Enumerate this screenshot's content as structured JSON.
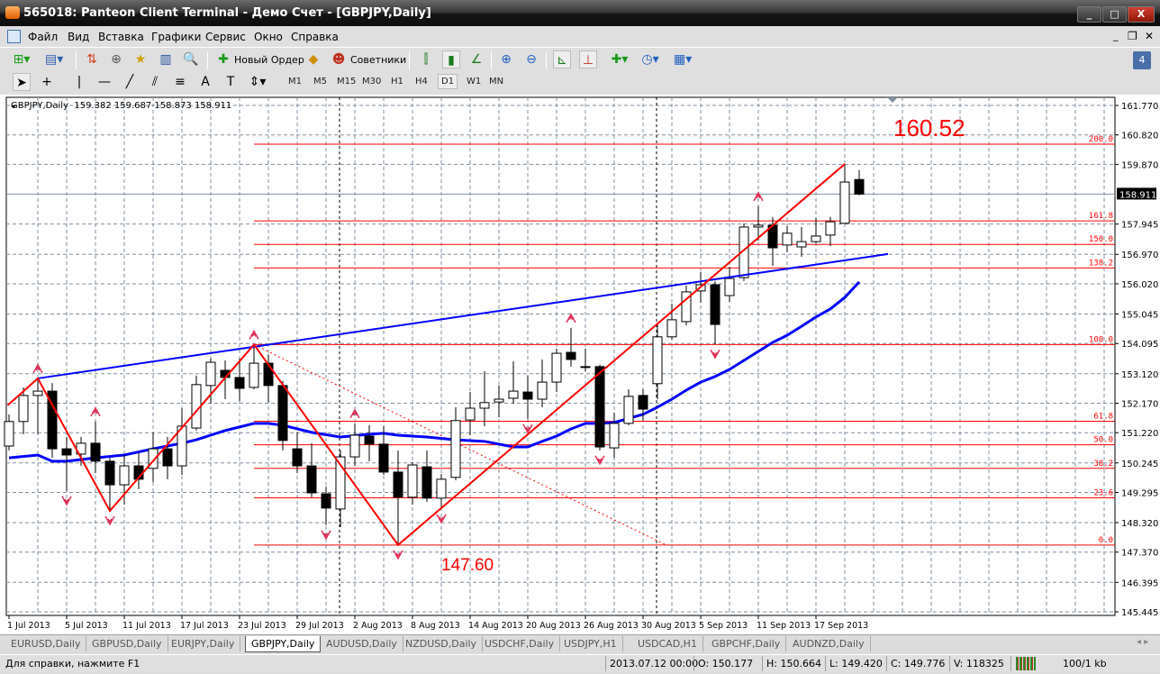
{
  "window": {
    "title": "565018: Panteon Client Terminal - Демо Счет - [GBPJPY,Daily]",
    "minimize": "_",
    "maximize": "□",
    "close": "X"
  },
  "mdi_controls": {
    "minimize": "_",
    "restore": "❐",
    "close": "✕"
  },
  "menu": [
    "Файл",
    "Вид",
    "Вставка",
    "Графики",
    "Сервис",
    "Окно",
    "Справка"
  ],
  "toolbar": {
    "new_order": "Новый Ордер",
    "experts": "Советники",
    "notifications_count": "4"
  },
  "timeframes": [
    "M1",
    "M5",
    "M15",
    "M30",
    "H1",
    "H4",
    "D1",
    "W1",
    "MN"
  ],
  "active_timeframe": "D1",
  "chart": {
    "header": "GBPJPY,Daily  159.382 159.687 158.873 158.911",
    "current_price": "158.911",
    "target_label": "160.52",
    "low_label": "147.60",
    "colors": {
      "bull_body": "#ffffff",
      "bear_body": "#000000",
      "ma": "#0000ff",
      "trendline": "#0000ff",
      "zigzag": "#ff0000",
      "fib": "#ff0000",
      "grid": "#8090a0"
    },
    "price_ticks": [
      "161.770",
      "160.820",
      "159.870",
      "157.945",
      "156.970",
      "156.020",
      "155.045",
      "154.095",
      "153.120",
      "152.170",
      "151.220",
      "150.245",
      "149.295",
      "148.320",
      "147.370",
      "146.395",
      "145.445"
    ],
    "date_labels": [
      "1 Jul 2013",
      "5 Jul 2013",
      "11 Jul 2013",
      "17 Jul 2013",
      "23 Jul 2013",
      "29 Jul 2013",
      "2 Aug 2013",
      "8 Aug 2013",
      "14 Aug 2013",
      "20 Aug 2013",
      "26 Aug 2013",
      "30 Aug 2013",
      "5 Sep 2013",
      "11 Sep 2013",
      "17 Sep 2013"
    ]
  },
  "chart_data": {
    "type": "candlestick",
    "symbol": "GBPJPY",
    "timeframe": "Daily",
    "ylim": [
      145.445,
      161.77
    ],
    "ohlc_columns": [
      "open",
      "high",
      "low",
      "close"
    ],
    "candles": [
      [
        150.79,
        151.81,
        150.65,
        151.58
      ],
      [
        151.58,
        152.68,
        151.17,
        152.42
      ],
      [
        152.42,
        152.97,
        151.17,
        152.56
      ],
      [
        152.56,
        152.82,
        150.41,
        150.7
      ],
      [
        150.7,
        151.08,
        149.34,
        150.5
      ],
      [
        150.53,
        151.08,
        150.15,
        150.88
      ],
      [
        150.88,
        151.58,
        149.92,
        150.3
      ],
      [
        150.3,
        150.41,
        148.7,
        149.54
      ],
      [
        149.54,
        150.5,
        148.9,
        150.15
      ],
      [
        150.15,
        150.56,
        149.4,
        149.72
      ],
      [
        150.07,
        151.23,
        149.63,
        150.7
      ],
      [
        150.7,
        151.08,
        149.72,
        150.15
      ],
      [
        150.15,
        152.01,
        149.86,
        151.43
      ],
      [
        151.37,
        153.06,
        151.29,
        152.77
      ],
      [
        152.74,
        153.61,
        152.16,
        153.49
      ],
      [
        153.23,
        153.55,
        152.3,
        153.0
      ],
      [
        153.0,
        153.61,
        152.24,
        152.65
      ],
      [
        152.68,
        154.06,
        152.62,
        153.46
      ],
      [
        153.46,
        153.75,
        152.19,
        152.74
      ],
      [
        152.74,
        152.88,
        150.65,
        150.97
      ],
      [
        150.7,
        151.23,
        149.92,
        150.15
      ],
      [
        150.15,
        150.88,
        149.14,
        149.28
      ],
      [
        149.25,
        149.48,
        148.24,
        148.79
      ],
      [
        148.76,
        150.65,
        148.18,
        150.44
      ],
      [
        150.44,
        151.52,
        150.15,
        151.14
      ],
      [
        151.11,
        151.46,
        150.3,
        150.85
      ],
      [
        150.85,
        151.43,
        149.86,
        149.95
      ],
      [
        149.95,
        150.65,
        147.6,
        149.14
      ],
      [
        149.14,
        150.27,
        148.9,
        150.18
      ],
      [
        150.12,
        150.65,
        148.99,
        149.11
      ],
      [
        149.11,
        149.89,
        148.76,
        149.72
      ],
      [
        149.78,
        152.04,
        149.69,
        151.61
      ],
      [
        151.63,
        152.53,
        151.14,
        152.01
      ],
      [
        152.01,
        153.2,
        151.43,
        152.19
      ],
      [
        152.21,
        152.74,
        151.72,
        152.3
      ],
      [
        152.33,
        153.52,
        152.16,
        152.56
      ],
      [
        152.53,
        153.06,
        151.66,
        152.3
      ],
      [
        152.3,
        153.58,
        152.04,
        152.85
      ],
      [
        152.85,
        153.93,
        152.53,
        153.78
      ],
      [
        153.81,
        154.6,
        153.35,
        153.58
      ],
      [
        153.35,
        153.93,
        153.2,
        153.35
      ],
      [
        153.35,
        153.41,
        150.65,
        150.76
      ],
      [
        150.73,
        151.87,
        150.41,
        151.52
      ],
      [
        151.52,
        152.62,
        151.46,
        152.39
      ],
      [
        152.42,
        152.62,
        151.61,
        151.98
      ],
      [
        152.8,
        154.77,
        152.3,
        154.31
      ],
      [
        154.31,
        155.38,
        154.22,
        154.86
      ],
      [
        154.8,
        155.96,
        154.68,
        155.76
      ],
      [
        155.79,
        156.4,
        155.41,
        155.99
      ],
      [
        155.99,
        156.11,
        154.07,
        154.71
      ],
      [
        155.64,
        156.57,
        155.44,
        156.19
      ],
      [
        156.22,
        157.97,
        156.11,
        157.85
      ],
      [
        157.85,
        158.52,
        157.41,
        157.91
      ],
      [
        157.91,
        158.17,
        156.6,
        157.18
      ],
      [
        157.27,
        157.88,
        157.04,
        157.65
      ],
      [
        157.21,
        157.85,
        156.89,
        157.38
      ],
      [
        157.38,
        158.14,
        157.33,
        157.56
      ],
      [
        157.59,
        158.17,
        157.24,
        158.02
      ],
      [
        157.97,
        159.88,
        157.97,
        159.3
      ],
      [
        159.382,
        159.687,
        158.873,
        158.911
      ]
    ],
    "moving_average": [
      [
        0,
        150.41
      ],
      [
        2,
        150.5
      ],
      [
        3,
        150.3
      ],
      [
        4,
        150.3
      ],
      [
        6,
        150.41
      ],
      [
        8,
        150.5
      ],
      [
        10,
        150.7
      ],
      [
        12,
        150.88
      ],
      [
        13,
        150.99
      ],
      [
        15,
        151.29
      ],
      [
        17,
        151.52
      ],
      [
        18,
        151.52
      ],
      [
        19,
        151.46
      ],
      [
        21,
        151.23
      ],
      [
        23,
        151.08
      ],
      [
        25,
        151.17
      ],
      [
        26,
        151.2
      ],
      [
        27,
        151.14
      ],
      [
        29,
        151.08
      ],
      [
        31,
        150.99
      ],
      [
        33,
        150.94
      ],
      [
        35,
        150.76
      ],
      [
        36,
        150.76
      ],
      [
        37,
        150.94
      ],
      [
        38,
        151.11
      ],
      [
        39,
        151.34
      ],
      [
        40,
        151.52
      ],
      [
        41,
        151.52
      ],
      [
        42,
        151.55
      ],
      [
        44,
        151.81
      ],
      [
        45,
        152.04
      ],
      [
        46,
        152.3
      ],
      [
        47,
        152.59
      ],
      [
        48,
        152.85
      ],
      [
        49,
        153.03
      ],
      [
        50,
        153.26
      ],
      [
        51,
        153.55
      ],
      [
        52,
        153.84
      ],
      [
        53,
        154.13
      ],
      [
        54,
        154.36
      ],
      [
        55,
        154.65
      ],
      [
        56,
        154.95
      ],
      [
        57,
        155.21
      ],
      [
        58,
        155.58
      ],
      [
        59,
        156.08
      ]
    ],
    "trendline": [
      [
        2,
        152.97
      ],
      [
        61,
        156.98
      ]
    ],
    "zigzag": [
      [
        -0.1,
        152.1
      ],
      [
        2,
        152.97
      ],
      [
        7,
        148.7
      ],
      [
        17,
        154.06
      ],
      [
        27,
        147.6
      ],
      [
        58,
        159.88
      ]
    ],
    "dotted_line": [
      [
        17,
        154.06
      ],
      [
        45.6,
        147.6
      ]
    ],
    "swing_high_markers": [
      2,
      6,
      17,
      24,
      39,
      52
    ],
    "swing_low_markers": [
      4,
      7,
      22,
      27,
      30,
      36,
      41,
      49
    ],
    "fibonacci": {
      "anchor_bar": 17,
      "levels": [
        {
          "label": "200.0",
          "price": 160.52
        },
        {
          "label": "161.8",
          "price": 158.05
        },
        {
          "label": "150.0",
          "price": 157.29
        },
        {
          "label": "138.2",
          "price": 156.53
        },
        {
          "label": "100.0",
          "price": 154.06
        },
        {
          "label": "61.8",
          "price": 151.59
        },
        {
          "label": "50.0",
          "price": 150.83
        },
        {
          "label": "38.2",
          "price": 150.07
        },
        {
          "label": "23.6",
          "price": 149.12
        },
        {
          "label": "0.0",
          "price": 147.6
        }
      ]
    },
    "current_price": 158.911,
    "period_separators": [
      23,
      45
    ]
  },
  "tabs": [
    "EURUSD,Daily",
    "GBPUSD,Daily",
    "EURJPY,Daily",
    "GBPJPY,Daily",
    "AUDUSD,Daily",
    "NZDUSD,Daily",
    "USDCHF,Daily",
    "USDJPY,H1",
    "USDCAD,H1",
    "GBPCHF,Daily",
    "AUDNZD,Daily"
  ],
  "active_tab": "GBPJPY,Daily",
  "status": {
    "help": "Для справки, нажмите F1",
    "datetime": "2013.07.12 00:00",
    "open": "O: 150.177",
    "high": "H: 150.664",
    "low": "L: 149.420",
    "close": "C: 149.776",
    "volume": "V: 118325",
    "traffic": "100/1 kb"
  }
}
